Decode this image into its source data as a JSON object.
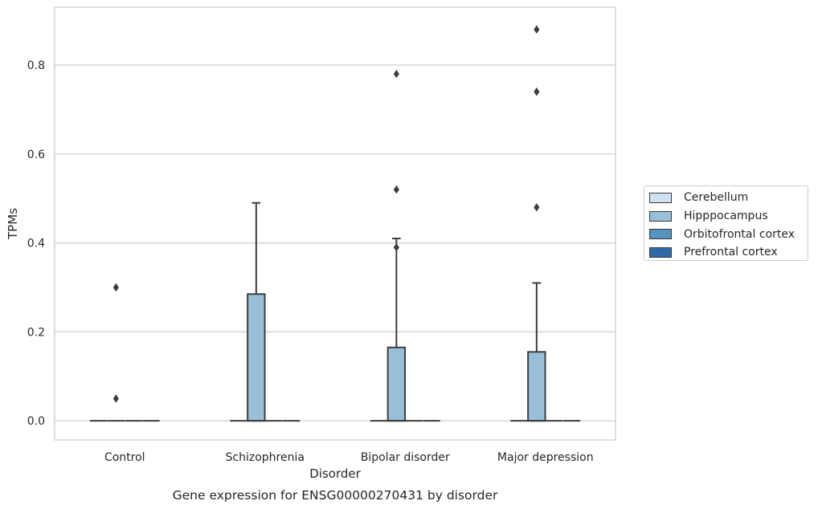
{
  "chart_data": {
    "type": "box",
    "title": "",
    "caption": "Gene expression for ENSG00000270431 by disorder",
    "xlabel": "Disorder",
    "ylabel": "TPMs",
    "ylim": [
      -0.043,
      0.93
    ],
    "yticks": [
      0.0,
      0.2,
      0.4,
      0.6,
      0.8
    ],
    "ytick_labels": [
      "0.0",
      "0.2",
      "0.4",
      "0.6",
      "0.8"
    ],
    "grid": true,
    "legend_position": "right",
    "categories": [
      "Control",
      "Schizophrenia",
      "Bipolar disorder",
      "Major depression"
    ],
    "series": [
      {
        "name": "Cerebellum",
        "color": "#d0e1f2",
        "boxes": [
          {
            "q1": 0,
            "median": 0,
            "q3": 0,
            "whisker_low": 0,
            "whisker_high": 0,
            "outliers": []
          },
          {
            "q1": 0,
            "median": 0,
            "q3": 0,
            "whisker_low": 0,
            "whisker_high": 0,
            "outliers": []
          },
          {
            "q1": 0,
            "median": 0,
            "q3": 0,
            "whisker_low": 0,
            "whisker_high": 0,
            "outliers": []
          },
          {
            "q1": 0,
            "median": 0,
            "q3": 0,
            "whisker_low": 0,
            "whisker_high": 0,
            "outliers": []
          }
        ]
      },
      {
        "name": "Hipppocampus",
        "color": "#9ac0d9",
        "boxes": [
          {
            "q1": 0,
            "median": 0,
            "q3": 0,
            "whisker_low": 0,
            "whisker_high": 0,
            "outliers": [
              0.3,
              0.05
            ]
          },
          {
            "q1": 0,
            "median": 0,
            "q3": 0.285,
            "whisker_low": 0,
            "whisker_high": 0.49,
            "outliers": []
          },
          {
            "q1": 0,
            "median": 0,
            "q3": 0.165,
            "whisker_low": 0,
            "whisker_high": 0.41,
            "outliers": [
              0.78,
              0.52,
              0.39
            ]
          },
          {
            "q1": 0,
            "median": 0,
            "q3": 0.155,
            "whisker_low": 0,
            "whisker_high": 0.31,
            "outliers": [
              0.88,
              0.74,
              0.48
            ]
          }
        ]
      },
      {
        "name": "Orbitofrontal cortex",
        "color": "#5793bf",
        "boxes": [
          {
            "q1": 0,
            "median": 0,
            "q3": 0,
            "whisker_low": 0,
            "whisker_high": 0,
            "outliers": []
          },
          {
            "q1": 0,
            "median": 0,
            "q3": 0,
            "whisker_low": 0,
            "whisker_high": 0,
            "outliers": []
          },
          {
            "q1": 0,
            "median": 0,
            "q3": 0,
            "whisker_low": 0,
            "whisker_high": 0,
            "outliers": []
          },
          {
            "q1": 0,
            "median": 0,
            "q3": 0,
            "whisker_low": 0,
            "whisker_high": 0,
            "outliers": []
          }
        ]
      },
      {
        "name": "Prefrontal cortex",
        "color": "#2e6aa6",
        "boxes": [
          {
            "q1": 0,
            "median": 0,
            "q3": 0,
            "whisker_low": 0,
            "whisker_high": 0,
            "outliers": []
          },
          {
            "q1": 0,
            "median": 0,
            "q3": 0,
            "whisker_low": 0,
            "whisker_high": 0,
            "outliers": []
          },
          {
            "q1": 0,
            "median": 0,
            "q3": 0,
            "whisker_low": 0,
            "whisker_high": 0,
            "outliers": []
          },
          {
            "q1": 0,
            "median": 0,
            "q3": 0,
            "whisker_low": 0,
            "whisker_high": 0,
            "outliers": []
          }
        ]
      }
    ]
  }
}
